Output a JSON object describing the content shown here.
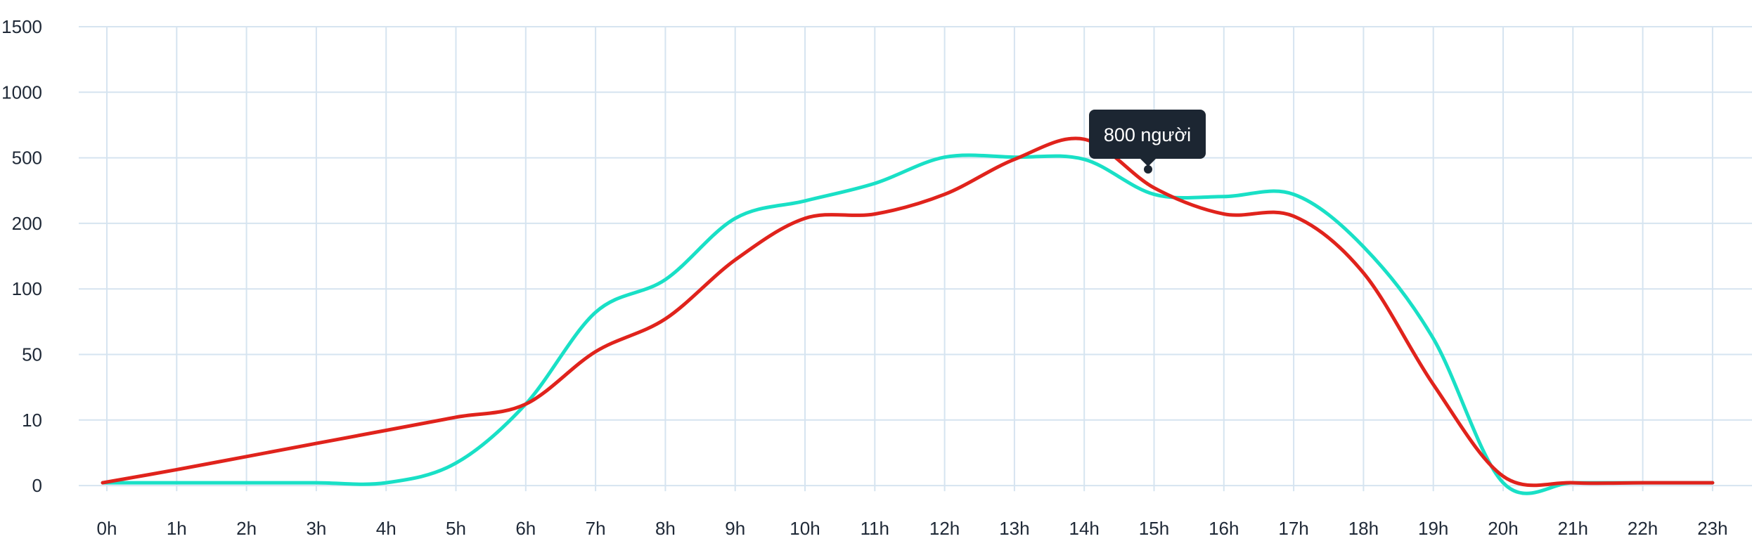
{
  "chart_data": {
    "type": "line",
    "y_ticks": [
      "0",
      "10",
      "50",
      "100",
      "200",
      "500",
      "1000",
      "1500"
    ],
    "x": [
      "0h",
      "1h",
      "2h",
      "3h",
      "4h",
      "5h",
      "6h",
      "7h",
      "8h",
      "9h",
      "10h",
      "11h",
      "12h",
      "13h",
      "14h",
      "15h",
      "16h",
      "17h",
      "18h",
      "19h",
      "20h",
      "21h",
      "22h",
      "23h"
    ],
    "grid": true,
    "series": [
      {
        "color": "#19e0c6",
        "values": [
          0,
          0,
          0,
          0,
          0,
          3,
          18,
          80,
          110,
          210,
          290,
          370,
          490,
          490,
          480,
          320,
          310,
          320,
          160,
          60,
          0,
          0,
          0,
          0
        ]
      },
      {
        "color": "#e0231c",
        "values": [
          0,
          2,
          4,
          6,
          8,
          10,
          18,
          50,
          75,
          140,
          210,
          230,
          320,
          480,
          620,
          350,
          230,
          220,
          120,
          30,
          1,
          0,
          0,
          0
        ]
      }
    ],
    "tooltip": {
      "text": "800 người",
      "x": "15h"
    }
  }
}
